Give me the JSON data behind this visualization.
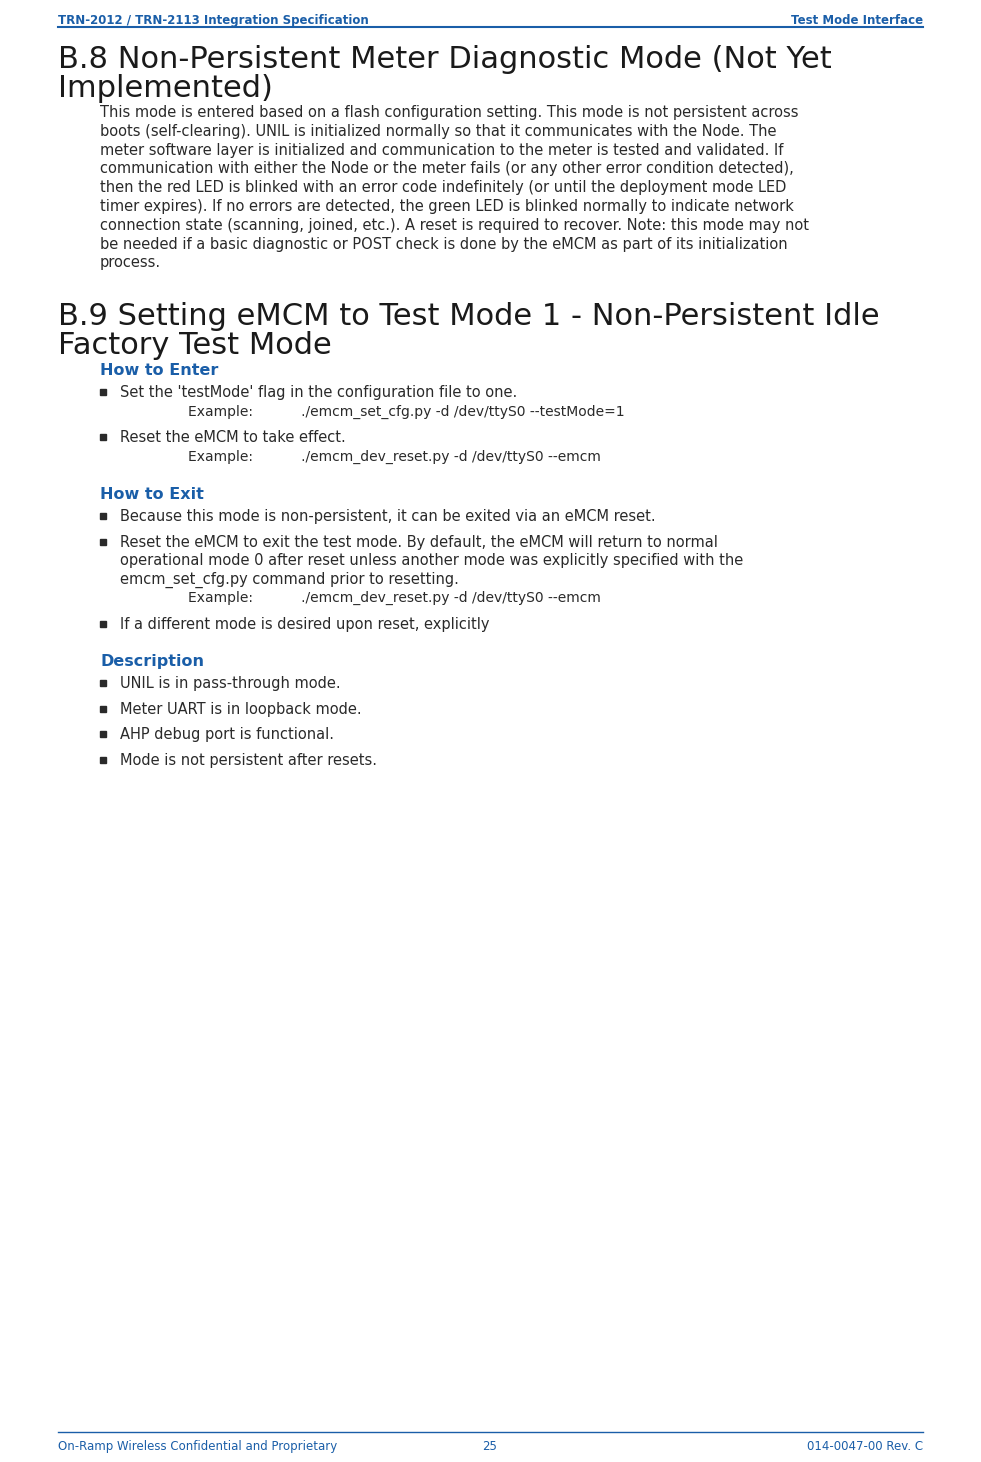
{
  "header_left": "TRN-2012 / TRN-2113 Integration Specification",
  "header_right": "Test Mode Interface",
  "footer_left": "On-Ramp Wireless Confidential and Proprietary",
  "footer_center": "25",
  "footer_right": "014-0047-00 Rev. C",
  "header_color": "#1A5EA8",
  "section_color": "#1a1a1a",
  "subsection_color": "#1A5EA8",
  "body_color": "#2a2a2a",
  "bg_color": "#ffffff",
  "body_lines": [
    "This mode is entered based on a flash configuration setting. This mode is not persistent across",
    "boots (self-clearing). UNIL is initialized normally so that it communicates with the Node. The",
    "meter software layer is initialized and communication to the meter is tested and validated. If",
    "communication with either the Node or the meter fails (or any other error condition detected),",
    "then the red LED is blinked with an error code indefinitely (or until the deployment mode LED",
    "timer expires). If no errors are detected, the green LED is blinked normally to indicate network",
    "connection state (scanning, joined, etc.). A reset is required to recover. Note: this mode may not",
    "be needed if a basic diagnostic or POST check is done by the eMCM as part of its initialization",
    "process."
  ],
  "subsections": [
    {
      "title": "How to Enter",
      "bullets": [
        {
          "lines": [
            "Set the 'testMode' flag in the configuration file to one."
          ],
          "sub": "Example:           ./emcm_set_cfg.py -d /dev/ttyS0 --testMode=1"
        },
        {
          "lines": [
            "Reset the eMCM to take effect."
          ],
          "sub": "Example:           ./emcm_dev_reset.py -d /dev/ttyS0 --emcm"
        }
      ]
    },
    {
      "title": "How to Exit",
      "bullets": [
        {
          "lines": [
            "Because this mode is non-persistent, it can be exited via an eMCM reset."
          ],
          "sub": null
        },
        {
          "lines": [
            "Reset the eMCM to exit the test mode. By default, the eMCM will return to normal",
            "operational mode 0 after reset unless another mode was explicitly specified with the",
            "emcm_set_cfg.py command prior to resetting."
          ],
          "sub": "Example:           ./emcm_dev_reset.py -d /dev/ttyS0 --emcm"
        },
        {
          "lines": [
            "If a different mode is desired upon reset, explicitly"
          ],
          "sub": null
        }
      ]
    },
    {
      "title": "Description",
      "bullets": [
        {
          "lines": [
            "UNIL is in pass-through mode."
          ],
          "sub": null
        },
        {
          "lines": [
            "Meter UART is in loopback mode."
          ],
          "sub": null
        },
        {
          "lines": [
            "AHP debug port is functional."
          ],
          "sub": null
        },
        {
          "lines": [
            "Mode is not persistent after resets."
          ],
          "sub": null
        }
      ]
    }
  ]
}
